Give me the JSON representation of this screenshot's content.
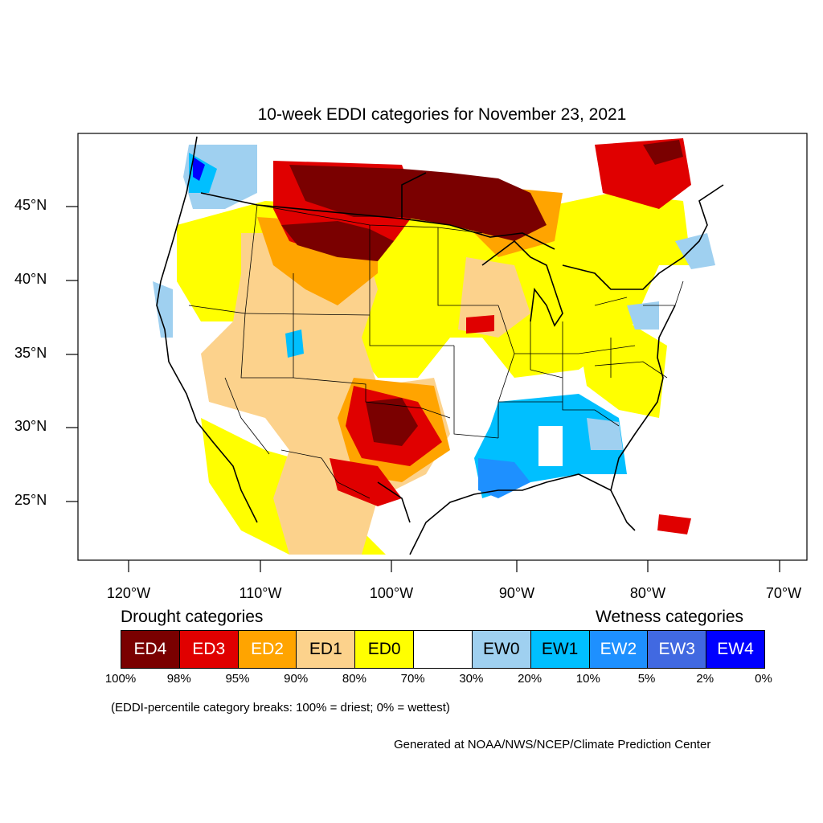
{
  "title": "10-week EDDI categories for November 23, 2021",
  "lat_labels": [
    "45°N",
    "40°N",
    "35°N",
    "30°N",
    "25°N"
  ],
  "lon_labels": [
    "120°W",
    "110°W",
    "100°W",
    "90°W",
    "80°W",
    "70°W"
  ],
  "legend": {
    "drought_heading": "Drought categories",
    "wetness_heading": "Wetness categories",
    "categories": [
      {
        "label": "ED4",
        "color": "#7a0000",
        "text_color": "#ffffff"
      },
      {
        "label": "ED3",
        "color": "#e00000",
        "text_color": "#ffffff"
      },
      {
        "label": "ED2",
        "color": "#ffa400",
        "text_color": "#ffffff"
      },
      {
        "label": "ED1",
        "color": "#fcd28c",
        "text_color": "#000000"
      },
      {
        "label": "ED0",
        "color": "#ffff00",
        "text_color": "#000000"
      },
      {
        "label": "",
        "color": "#ffffff",
        "text_color": "#000000"
      },
      {
        "label": "EW0",
        "color": "#9fd0f0",
        "text_color": "#000000"
      },
      {
        "label": "EW1",
        "color": "#00bfff",
        "text_color": "#000000"
      },
      {
        "label": "EW2",
        "color": "#1e90ff",
        "text_color": "#ffffff"
      },
      {
        "label": "EW3",
        "color": "#4169e1",
        "text_color": "#ffffff"
      },
      {
        "label": "EW4",
        "color": "#0000ff",
        "text_color": "#ffffff"
      }
    ],
    "percentiles": [
      "100%",
      "98%",
      "95%",
      "90%",
      "80%",
      "70%",
      "30%",
      "20%",
      "10%",
      "5%",
      "2%",
      "0%"
    ]
  },
  "note": "(EDDI-percentile category breaks: 100% = driest; 0% = wettest)",
  "credit": "Generated at NOAA/NWS/NCEP/Climate Prediction Center"
}
